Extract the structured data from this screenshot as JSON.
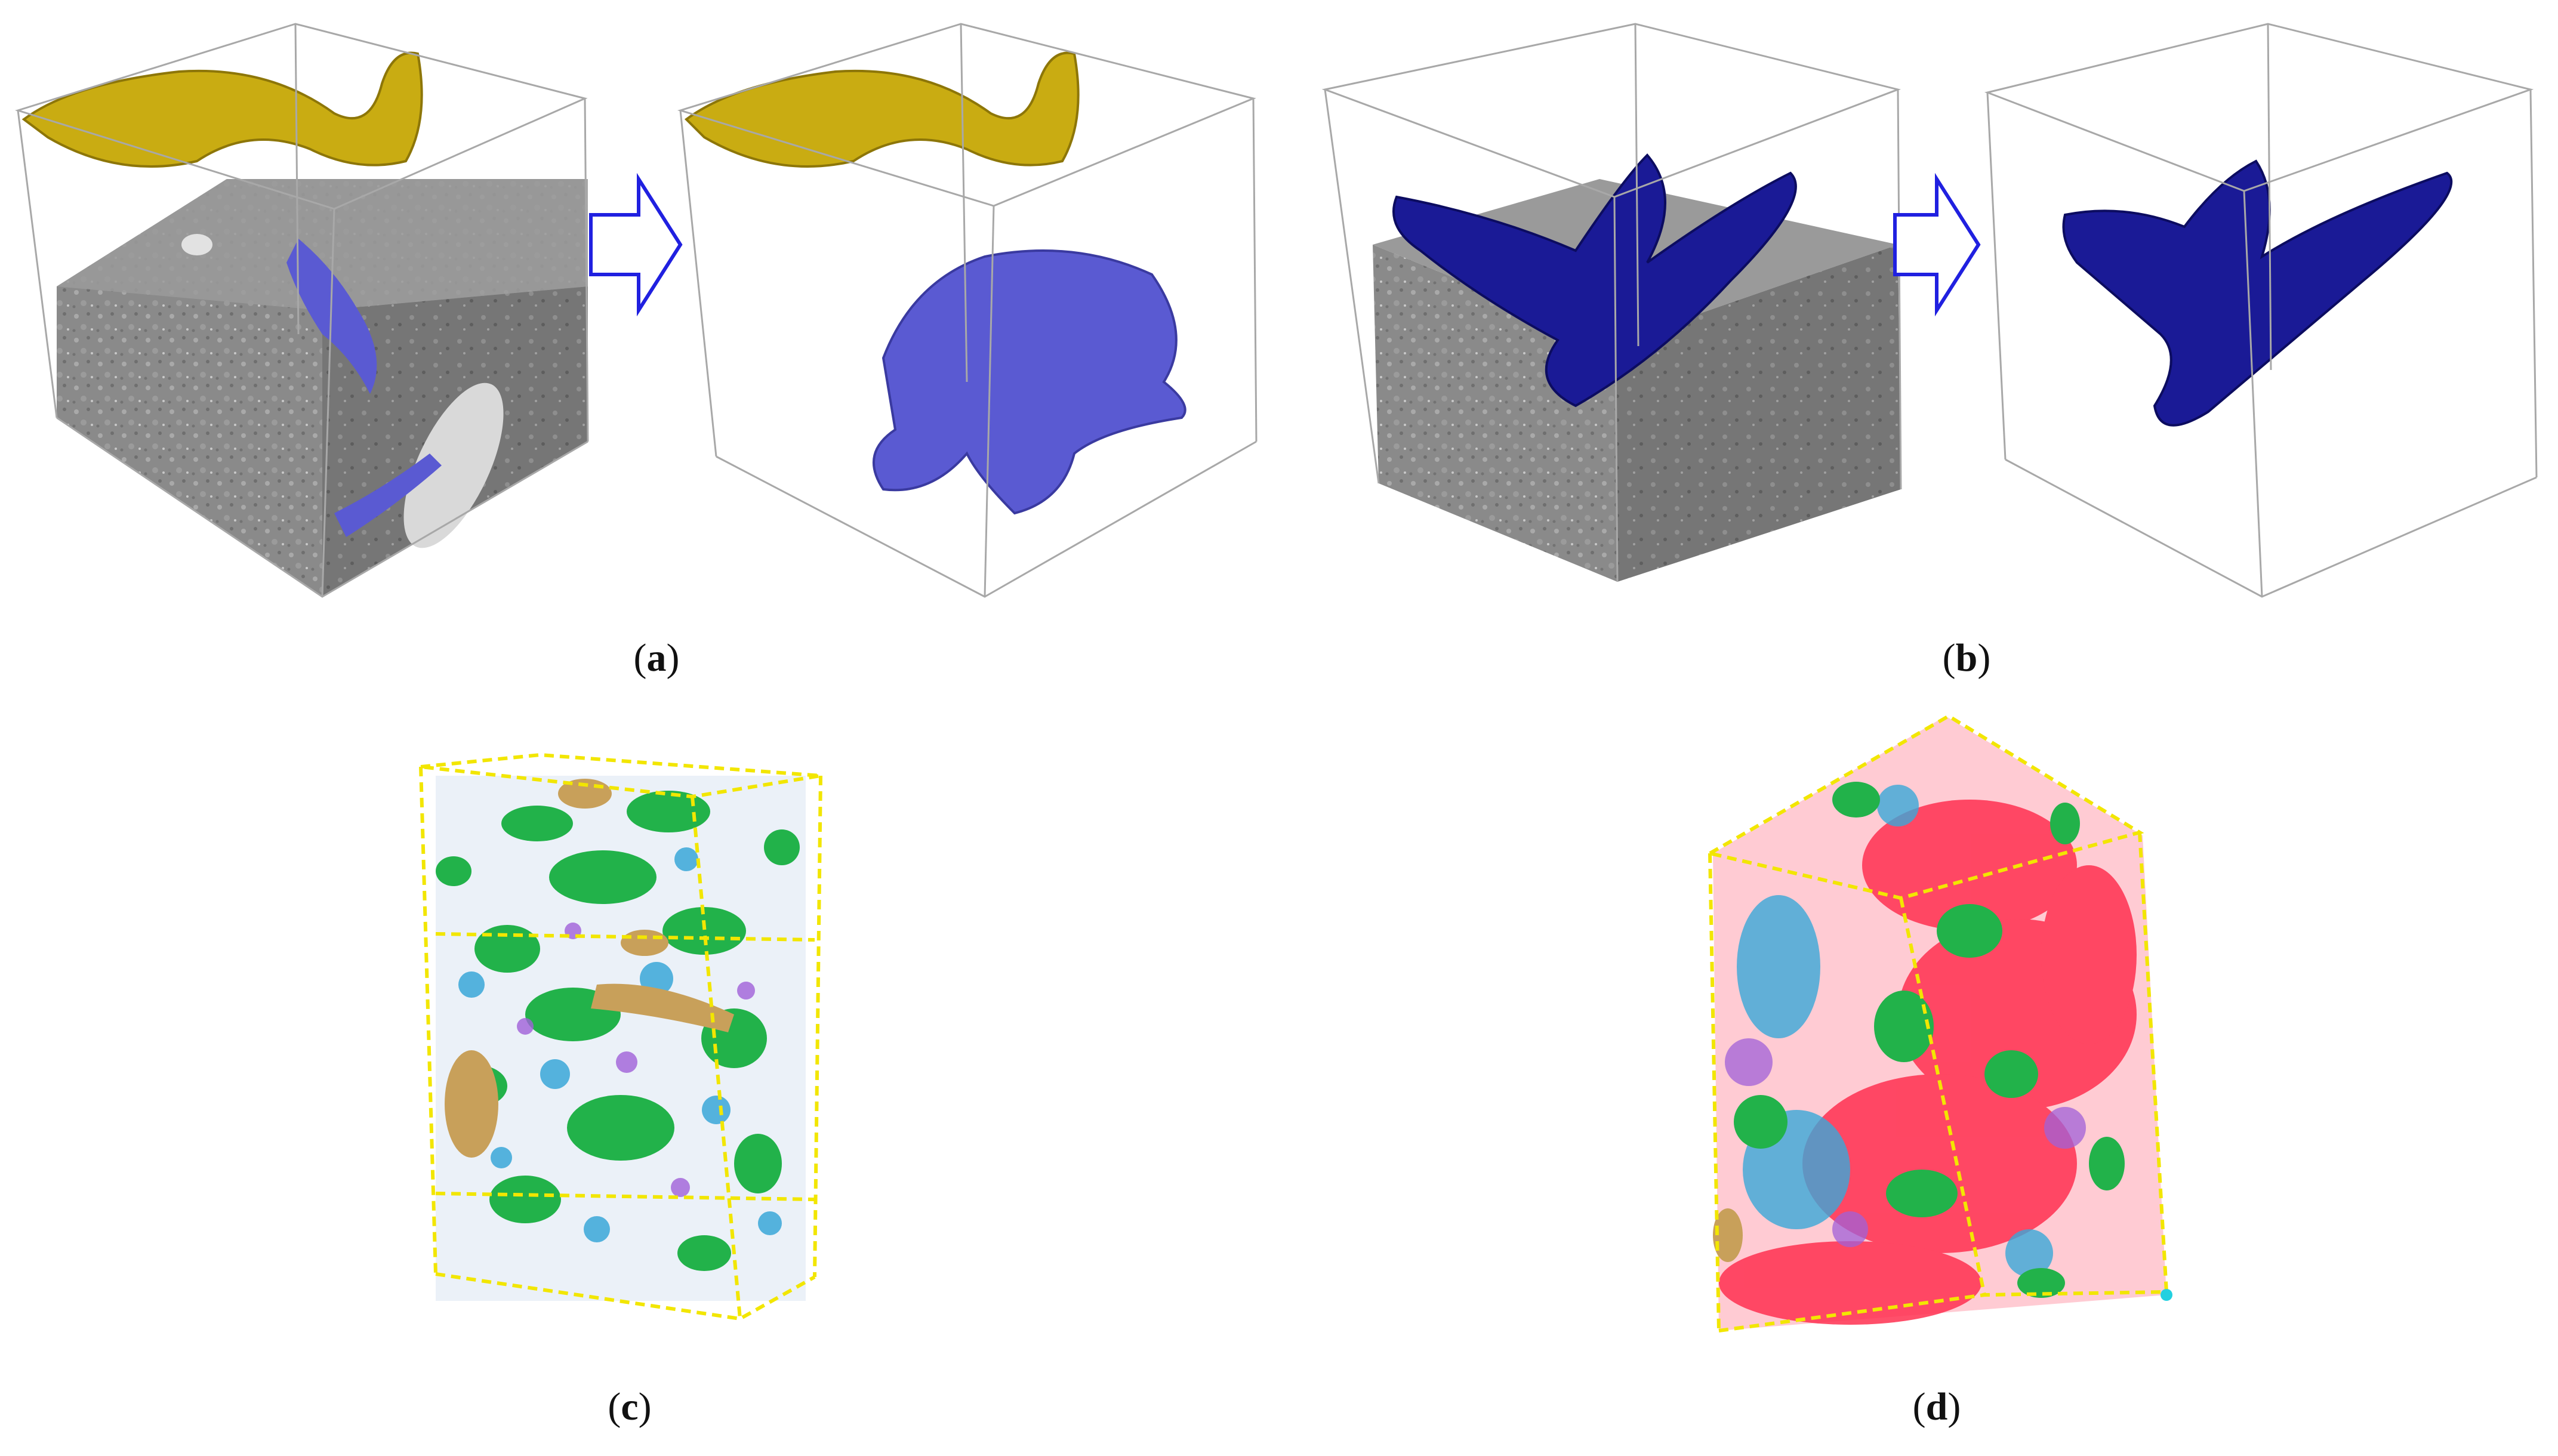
{
  "captions": {
    "a": "a",
    "b": "b",
    "c": "c",
    "d": "d"
  },
  "colors": {
    "yellow_surface": "#c9ac12",
    "blue_light": "#5a5ad2",
    "blue_dark": "#1a1a96",
    "arrow": "#2020e0",
    "cube_gray": "#8c8c8c",
    "green": "#22b24a",
    "cyan": "#3aa7d8",
    "purple": "#a060d8",
    "tan": "#c8a05a",
    "red": "#ff3050",
    "box_yellow": "#f2e600"
  }
}
